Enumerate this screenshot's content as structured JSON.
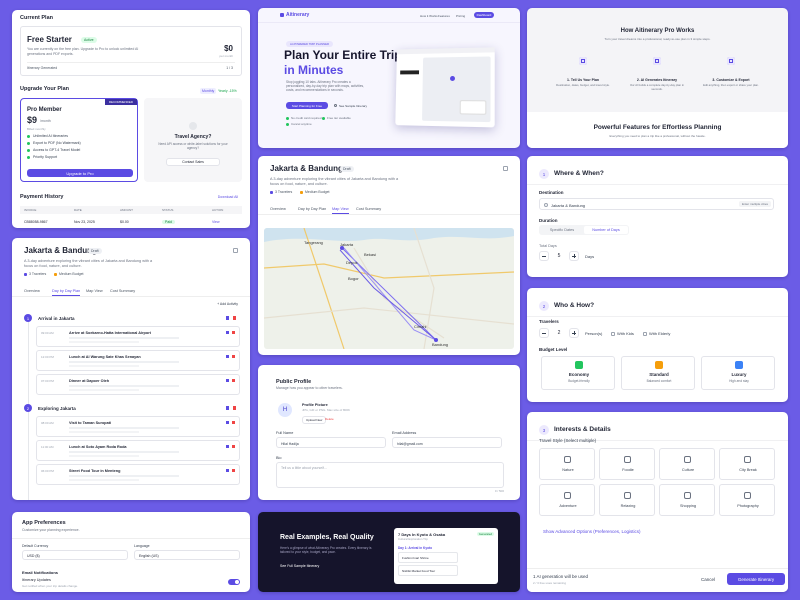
{
  "billing": {
    "section_title": "Current Plan",
    "plan_name": "Free Starter",
    "plan_badge": "Active",
    "plan_desc": "You are currently on the free plan. Upgrade to Pro to unlock unlimited AI generations and PDF exports.",
    "price": "$0",
    "price_unit": "per month",
    "usage_label": "Itinerary Generated",
    "usage_value": "1 / 3",
    "upgrade_title": "Upgrade Your Plan",
    "billing_toggle": [
      "Monthly",
      "Yearly -15%"
    ],
    "pro": {
      "ribbon": "RECOMMENDED",
      "name": "Pro Member",
      "price": "$9",
      "price_unit": "/month",
      "note": "Billed monthly",
      "features": [
        "Unlimited AI Itineraries",
        "Export to PDF (No Watermark)",
        "Access to GPT-4 Travel Model",
        "Priority Support"
      ],
      "cta": "Upgrade to Pro"
    },
    "agency": {
      "title": "Travel Agency?",
      "desc": "Need API access or white-label solutions for your agency?",
      "cta": "Contact Sales"
    },
    "history_title": "Payment History",
    "download": "Download All",
    "table": {
      "columns": [
        "INVOICE",
        "DATE",
        "AMOUNT",
        "STATUS",
        "ACTION"
      ],
      "rows": [
        [
          "CB88058-9867",
          "Nov 23, 2025",
          "$0.00",
          "Paid",
          "View"
        ]
      ]
    }
  },
  "itinerary": {
    "title": "Jakarta & Bandung",
    "badge": "Draft",
    "desc": "A 3-day adventure exploring the vibrant cities of Jakarta and Bandung with a focus on food, nature, and culture.",
    "meta": [
      "3 Travelers",
      "Medium Budget"
    ],
    "tabs": [
      "Overview",
      "Day by Day Plan",
      "Map View",
      "Cost Summary"
    ],
    "add_activity": "+ Add Activity",
    "days": [
      {
        "number": "1",
        "title": "Arrival in Jakarta",
        "activities": [
          {
            "time": "09:00 AM",
            "title": "Arrive at Soekarno-Hatta International Airport"
          },
          {
            "time": "12:00 PM",
            "title": "Lunch at Al Warung Sate Khas Senayan"
          },
          {
            "time": "07:00 PM",
            "title": "Dinner at Dapoer Oleh"
          }
        ]
      },
      {
        "number": "2",
        "title": "Exploring Jakarta",
        "activities": [
          {
            "time": "08:00 AM",
            "title": "Visit to Taman Suropati"
          },
          {
            "time": "11:00 AM",
            "title": "Lunch at Soto Ayam Roda Roda"
          },
          {
            "time": "06:00 PM",
            "title": "Street Food Tour in Menteng"
          }
        ]
      }
    ]
  },
  "map_view": {
    "title": "Jakarta & Bandung",
    "badge": "Draft",
    "desc": "A 3-day adventure exploring the vibrant cities of Jakarta and Bandung with a focus on food, nature, and culture.",
    "meta": [
      "3 Travelers",
      "Medium Budget"
    ],
    "tabs": [
      "Overview",
      "Day by Day Plan",
      "Map View",
      "Cost Summary"
    ],
    "places": [
      "Tangerang",
      "Jakarta",
      "Bekasi",
      "Depok",
      "Bogor",
      "Cimahi",
      "Bandung"
    ]
  },
  "preferences": {
    "title": "App Preferences",
    "subtitle": "Customize your planning experience.",
    "currency_label": "Default Currency",
    "currency": "USD ($)",
    "language_label": "Language",
    "language": "English (US)",
    "notifications_title": "Email Notifications",
    "updates_label": "Itinerary Updates",
    "updates_desc": "Get notified when your trip details change."
  },
  "hero": {
    "logo": "Aitinerary",
    "nav": [
      "How it Works",
      "Features",
      "Pricing"
    ],
    "dashboard": "Dashboard",
    "pill": "AI-POWERED TRIP PLANNER",
    "headline": "Plan Your Entire Trip",
    "headline_accent": "in Minutes",
    "desc": "Stop juggling 10 tabs. Aitinerary Pro creates a personalized, day-by-day trip plan with maps, activities, costs, and recommendations in seconds.",
    "primary_cta": "Start Planning for Free",
    "secondary_cta": "See Sample Itinerary",
    "checks": [
      "No credit card required",
      "Free tier available",
      "Cancel anytime"
    ]
  },
  "profile": {
    "title": "Public Profile",
    "subtitle": "Manage how you appear to other travelers.",
    "avatar": "H",
    "picture_label": "Profile Picture",
    "picture_hint": "JPG, GIF or PNG. Max size of 800K",
    "upload": "Upload New",
    "delete": "Delete",
    "name_label": "Full Name",
    "name_value": "Hilal Hadija",
    "email_label": "Email Address",
    "email_value": "hilal@gmail.com",
    "bio_label": "Bio",
    "bio_placeholder": "Tell us a little about yourself...",
    "bio_counter": "0 / 500"
  },
  "examples": {
    "title": "Real Examples, Real Quality",
    "desc": "Here's a glimpse of what Aitinerary Pro creates. Every itinerary is tailored to your style, budget, and pace.",
    "link": "See Full Sample Itinerary",
    "sample_title": "7 Days In Kyoto & Osaka",
    "sample_subtitle": "Cultural Exploration Trip",
    "sample_badge": "Generated",
    "sample_day": "Day 1: Arrival in Kyoto",
    "sample_items": [
      "Fushimi Inari Shrine",
      "Nishiki Market Food Tour"
    ]
  },
  "how_it_works": {
    "title": "How Aitinerary Pro Works",
    "subtitle": "Turn your travel dreams into a professional, ready-to-use plan in 3 simple steps.",
    "steps": [
      {
        "title": "1. Tell Us Your Plan",
        "desc": "Destination, dates, budget, and travel style."
      },
      {
        "title": "2. AI Generates Itinerary",
        "desc": "Our AI builds a complete day-by-day plan in seconds."
      },
      {
        "title": "3. Customize & Export",
        "desc": "Edit anything, then export or share your plan."
      }
    ],
    "features_title": "Powerful Features for Effortless Planning",
    "features_subtitle": "Everything you need to plan a trip like a professional, without the hassle."
  },
  "where_when": {
    "step": "1",
    "title": "Where & When?",
    "destination_label": "Destination",
    "destination_value": "Jakarta & Bandung",
    "multi_city": "Enter multiple cities",
    "duration_label": "Duration",
    "duration_options": [
      "Specific Dates",
      "Number of Days"
    ],
    "days_label": "Total Days",
    "days_value": "5",
    "days_unit": "Days"
  },
  "who_how": {
    "step": "2",
    "title": "Who & How?",
    "travelers_label": "Travelers",
    "travelers_value": "2",
    "travelers_unit": "Person(s)",
    "with_kids": "With Kids",
    "with_elderly": "With Elderly",
    "budget_label": "Budget Level",
    "budgets": [
      {
        "name": "Economy",
        "desc": "Budget-friendly"
      },
      {
        "name": "Standard",
        "desc": "Balanced comfort"
      },
      {
        "name": "Luxury",
        "desc": "High-end stay"
      }
    ]
  },
  "interests": {
    "step": "3",
    "title": "Interests & Details",
    "style_label": "Travel Style (Select multiple)",
    "styles": [
      "Nature",
      "Foodie",
      "Culture",
      "City Break",
      "Adventure",
      "Relaxing",
      "Shopping",
      "Photography"
    ],
    "advanced": "Show Advanced Options (Preferences, Logistics)",
    "usage_note": "1 AI generation will be used",
    "usage_remaining": "2 / 3 free uses remaining",
    "cancel": "Cancel",
    "generate": "Generate Itinerary"
  }
}
